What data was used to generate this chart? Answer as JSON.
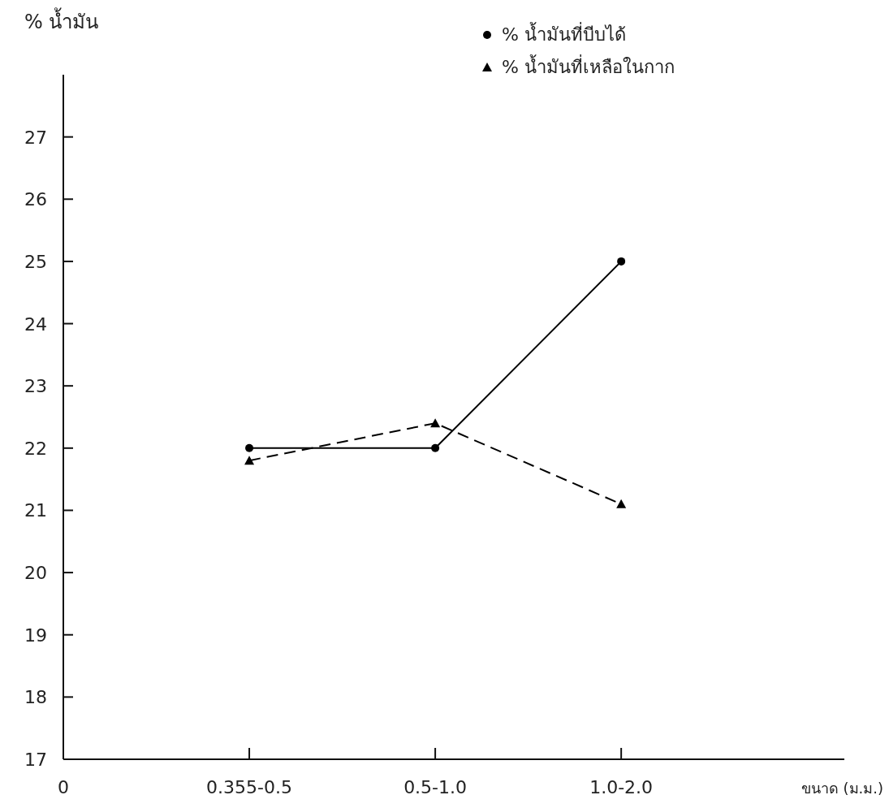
{
  "chart_data": {
    "type": "line",
    "ylabel": "% น้ำมัน",
    "xlabel": "ขนาด (ม.ม.)",
    "categories": [
      "0.355-0.5",
      "0.5-1.0",
      "1.0-2.0"
    ],
    "series": [
      {
        "name": "% น้ำมันที่บีบได้",
        "color": "#000000",
        "values": [
          22.0,
          22.0,
          25.0
        ],
        "marker": "circle",
        "line_style": "solid"
      },
      {
        "name": "% น้ำมันที่เหลือในกาก",
        "color": "#000000",
        "values": [
          21.8,
          22.4,
          21.1
        ],
        "marker": "triangle",
        "line_style": "dashed"
      }
    ],
    "ylim": [
      17,
      28
    ],
    "yticks": [
      17,
      18,
      19,
      20,
      21,
      22,
      23,
      24,
      25,
      26,
      27
    ],
    "legend": "top",
    "grid": false,
    "annotations": [
      "0"
    ]
  }
}
